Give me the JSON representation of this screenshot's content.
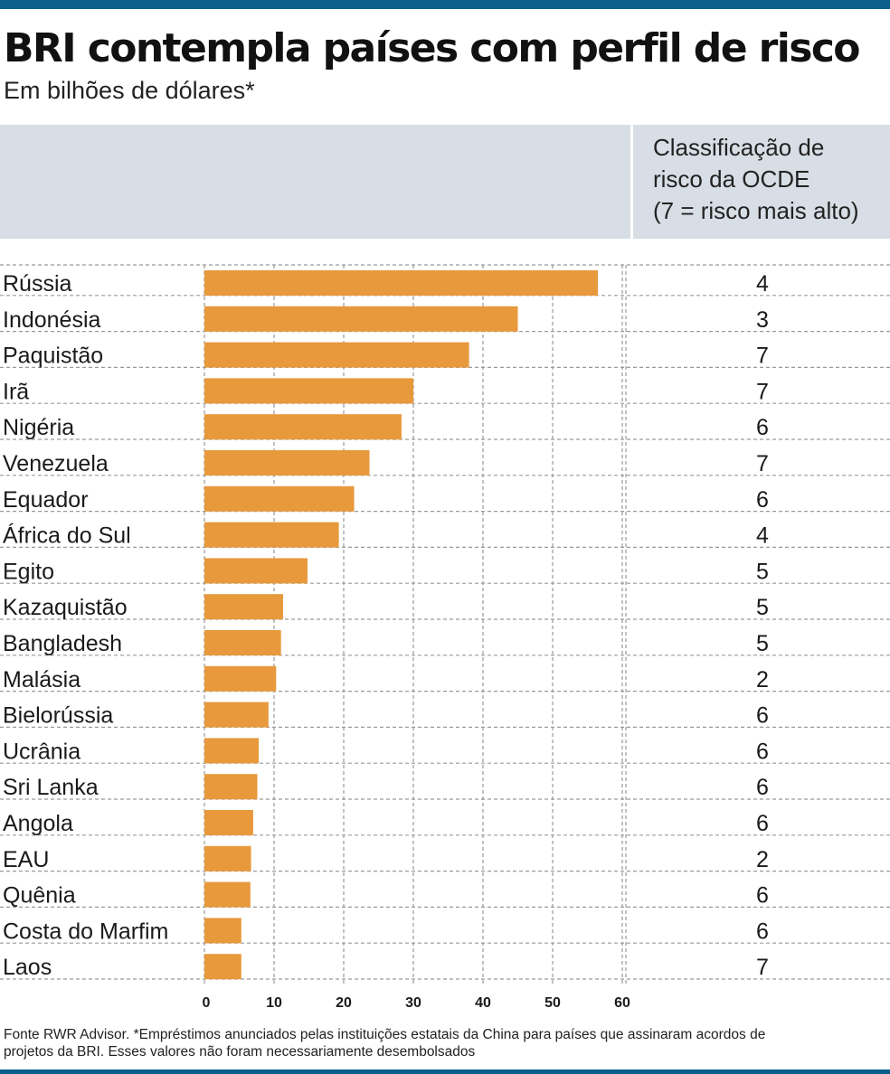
{
  "header": {
    "title": "BRI contempla países com perfil de risco",
    "subtitle": "Em bilhões de dólares*"
  },
  "risk_column": {
    "header_lines": [
      "Classificação de",
      "risco da OCDE",
      "(7 = risco mais alto)"
    ]
  },
  "colors": {
    "bar": "#e8993c",
    "accent_bar": "#0b5f8a",
    "header_band": "#d7dee6",
    "grid": "#9a9a9a"
  },
  "chart_data": {
    "type": "bar",
    "orientation": "horizontal",
    "title": "BRI contempla países com perfil de risco",
    "subtitle": "Em bilhões de dólares*",
    "categories": [
      "Rússia",
      "Indonésia",
      "Paquistão",
      "Irã",
      "Nigéria",
      "Venezuela",
      "Equador",
      "África do Sul",
      "Egito",
      "Kazaquistão",
      "Bangladesh",
      "Malásia",
      "Bielorússia",
      "Ucrânia",
      "Sri Lanka",
      "Angola",
      "EAU",
      "Quênia",
      "Costa do Marfim",
      "Laos"
    ],
    "values": [
      56.5,
      45.0,
      38.0,
      30.0,
      28.3,
      23.7,
      21.5,
      19.3,
      14.8,
      11.3,
      11.0,
      10.3,
      9.2,
      7.8,
      7.6,
      7.0,
      6.7,
      6.6,
      5.3,
      5.3
    ],
    "risk": [
      "4",
      "3",
      "7",
      "7",
      "6",
      "7",
      "6",
      "4",
      "5",
      "5",
      "5",
      "2",
      "6",
      "6",
      "6",
      "6",
      "2",
      "6",
      "6",
      "7"
    ],
    "x_ticks": [
      "0",
      "10",
      "20",
      "30",
      "40",
      "50",
      "60"
    ],
    "xlim": [
      0,
      60
    ],
    "grid": true
  },
  "footer": {
    "source_lines": [
      "Fonte RWR Advisor. *Empréstimos anunciados pelas instituições estatais da China para países que assinaram acordos de",
      "projetos da BRI. Esses valores não foram necessariamente desembolsados"
    ]
  }
}
